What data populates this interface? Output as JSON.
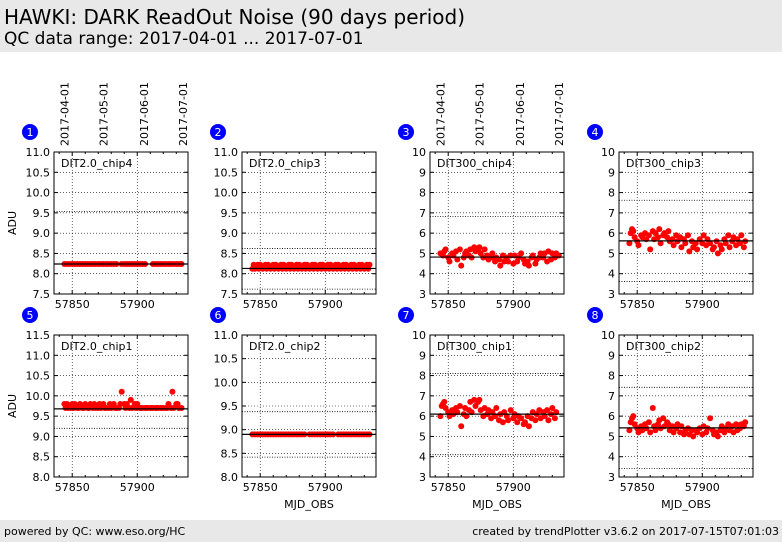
{
  "header": {
    "title": "HAWKI: DARK ReadOut Noise (90 days period)",
    "subtitle": "QC data range: 2017-04-01 ... 2017-07-01"
  },
  "footer": {
    "left": "powered by QC: www.eso.org/HC",
    "right": "created by trendPlotter v3.6.2 on 2017-07-15T07:01:03"
  },
  "colors": {
    "points": "#ff0000",
    "median": "#000000",
    "badge": "#0000ff",
    "header_bg": "#e8e8e8"
  },
  "chart_data": [
    {
      "id": 1,
      "label": "DIT2.0_chip4",
      "type": "scatter",
      "xlim": [
        57836,
        57939
      ],
      "ylim": [
        7.5,
        11.0
      ],
      "yticks": [
        "7.5",
        "8.0",
        "8.5",
        "9.0",
        "9.5",
        "10.0",
        "10.5",
        "11.0"
      ],
      "xticks": [
        "57850",
        "57900"
      ],
      "xtick_values": [
        57850,
        57900
      ],
      "date_ticks": [
        "2017-04-01",
        "2017-05-01",
        "2017-06-01",
        "2017-07-01"
      ],
      "date_tick_values": [
        57844,
        57874,
        57905,
        57935
      ],
      "ylabel": "ADU",
      "xlabel": "",
      "median": 8.24,
      "hlines": [
        9.53
      ],
      "x": [
        57844,
        57846,
        57848,
        57850,
        57852,
        57854,
        57856,
        57858,
        57860,
        57862,
        57864,
        57866,
        57868,
        57870,
        57872,
        57874,
        57876,
        57878,
        57880,
        57882,
        57884,
        57888,
        57890,
        57892,
        57894,
        57896,
        57898,
        57900,
        57902,
        57904,
        57906,
        57912,
        57914,
        57916,
        57918,
        57920,
        57922,
        57924,
        57926,
        57928,
        57930,
        57932,
        57934
      ],
      "y": [
        8.24,
        8.24,
        8.24,
        8.24,
        8.24,
        8.24,
        8.24,
        8.24,
        8.24,
        8.24,
        8.24,
        8.24,
        8.24,
        8.24,
        8.24,
        8.24,
        8.24,
        8.24,
        8.24,
        8.24,
        8.24,
        8.24,
        8.24,
        8.24,
        8.24,
        8.24,
        8.24,
        8.24,
        8.24,
        8.24,
        8.24,
        8.24,
        8.24,
        8.24,
        8.24,
        8.24,
        8.24,
        8.24,
        8.24,
        8.24,
        8.24,
        8.24,
        8.24
      ]
    },
    {
      "id": 2,
      "label": "DIT2.0_chip3",
      "type": "scatter",
      "xlim": [
        57836,
        57939
      ],
      "ylim": [
        7.5,
        11.0
      ],
      "yticks": [
        "7.5",
        "8.0",
        "8.5",
        "9.0",
        "9.5",
        "10.0",
        "10.5",
        "11.0"
      ],
      "xticks": [
        "57850",
        "57900"
      ],
      "xtick_values": [
        57850,
        57900
      ],
      "date_ticks": [],
      "date_tick_values": [],
      "ylabel": "",
      "xlabel": "",
      "median": 8.13,
      "hlines": [
        8.62,
        7.62
      ],
      "x": [
        57844,
        57845,
        57846,
        57848,
        57849,
        57850,
        57852,
        57854,
        57855,
        57856,
        57858,
        57860,
        57861,
        57862,
        57864,
        57866,
        57867,
        57868,
        57870,
        57872,
        57873,
        57874,
        57876,
        57878,
        57879,
        57880,
        57882,
        57884,
        57885,
        57886,
        57888,
        57890,
        57891,
        57892,
        57894,
        57896,
        57897,
        57898,
        57900,
        57902,
        57903,
        57904,
        57906,
        57908,
        57909,
        57910,
        57912,
        57914,
        57915,
        57916,
        57918,
        57920,
        57921,
        57922,
        57924,
        57926,
        57927,
        57928,
        57930,
        57932,
        57933,
        57934
      ],
      "y": [
        8.12,
        8.22,
        8.12,
        8.22,
        8.12,
        8.22,
        8.12,
        8.22,
        8.12,
        8.22,
        8.12,
        8.22,
        8.12,
        8.22,
        8.12,
        8.22,
        8.12,
        8.22,
        8.12,
        8.22,
        8.12,
        8.22,
        8.12,
        8.22,
        8.12,
        8.22,
        8.12,
        8.22,
        8.12,
        8.22,
        8.12,
        8.22,
        8.12,
        8.22,
        8.12,
        8.22,
        8.12,
        8.22,
        8.12,
        8.22,
        8.12,
        8.22,
        8.12,
        8.22,
        8.12,
        8.22,
        8.12,
        8.22,
        8.12,
        8.22,
        8.12,
        8.22,
        8.12,
        8.22,
        8.12,
        8.22,
        8.12,
        8.22,
        8.12,
        8.22,
        8.12,
        8.22
      ]
    },
    {
      "id": 3,
      "label": "DIT300_chip4",
      "type": "scatter",
      "xlim": [
        57836,
        57939
      ],
      "ylim": [
        3,
        10
      ],
      "yticks": [
        "3",
        "4",
        "5",
        "6",
        "7",
        "8",
        "9",
        "10"
      ],
      "xticks": [
        "57850",
        "57900"
      ],
      "xtick_values": [
        57850,
        57900
      ],
      "date_ticks": [
        "2017-04-01",
        "2017-05-01",
        "2017-06-01",
        "2017-07-01"
      ],
      "date_tick_values": [
        57844,
        57874,
        57905,
        57935
      ],
      "ylabel": "",
      "xlabel": "",
      "median": 4.82,
      "hlines": [
        6.82,
        3.0
      ],
      "x": [
        57844,
        57846,
        57847,
        57848,
        57850,
        57851,
        57853,
        57854,
        57856,
        57857,
        57859,
        57860,
        57862,
        57863,
        57864,
        57866,
        57867,
        57868,
        57870,
        57871,
        57873,
        57874,
        57875,
        57877,
        57878,
        57880,
        57881,
        57883,
        57884,
        57886,
        57887,
        57889,
        57890,
        57892,
        57893,
        57895,
        57896,
        57898,
        57900,
        57901,
        57903,
        57904,
        57906,
        57908,
        57909,
        57911,
        57912,
        57914,
        57915,
        57917,
        57918,
        57920,
        57921,
        57923,
        57924,
        57926,
        57927,
        57929,
        57930,
        57932,
        57933,
        57935
      ],
      "y": [
        5.0,
        4.9,
        5.1,
        5.2,
        4.8,
        4.6,
        5.0,
        4.9,
        5.1,
        4.7,
        5.2,
        4.4,
        4.8,
        5.0,
        5.1,
        4.9,
        5.2,
        4.8,
        5.3,
        5.1,
        5.2,
        5.3,
        5.0,
        4.8,
        5.2,
        4.9,
        4.7,
        4.8,
        5.0,
        4.6,
        4.8,
        4.7,
        4.4,
        4.9,
        4.6,
        4.8,
        4.6,
        4.9,
        4.5,
        4.9,
        4.6,
        4.8,
        5.0,
        4.7,
        4.5,
        4.6,
        4.4,
        4.8,
        4.9,
        4.5,
        4.7,
        4.8,
        5.0,
        4.8,
        5.0,
        4.6,
        5.1,
        4.7,
        5.0,
        4.8,
        5.0,
        4.9
      ]
    },
    {
      "id": 4,
      "label": "DIT300_chip3",
      "type": "scatter",
      "xlim": [
        57836,
        57939
      ],
      "ylim": [
        3,
        10
      ],
      "yticks": [
        "3",
        "4",
        "5",
        "6",
        "7",
        "8",
        "9",
        "10"
      ],
      "xticks": [
        "57850",
        "57900"
      ],
      "xtick_values": [
        57850,
        57900
      ],
      "date_ticks": [],
      "date_tick_values": [],
      "ylabel": "",
      "xlabel": "",
      "median": 5.62,
      "hlines": [
        7.62,
        3.62
      ],
      "x": [
        57844,
        57845,
        57846,
        57847,
        57848,
        57850,
        57851,
        57853,
        57854,
        57856,
        57857,
        57859,
        57860,
        57862,
        57863,
        57864,
        57866,
        57867,
        57868,
        57870,
        57871,
        57873,
        57874,
        57875,
        57877,
        57878,
        57880,
        57881,
        57883,
        57884,
        57886,
        57887,
        57889,
        57890,
        57892,
        57893,
        57895,
        57896,
        57898,
        57900,
        57901,
        57903,
        57904,
        57906,
        57908,
        57909,
        57911,
        57912,
        57914,
        57915,
        57917,
        57918,
        57920,
        57921,
        57923,
        57924,
        57926,
        57927,
        57929,
        57930,
        57932,
        57933
      ],
      "y": [
        5.5,
        6.0,
        6.2,
        6.1,
        5.8,
        5.6,
        5.4,
        5.9,
        5.8,
        6.0,
        5.7,
        5.9,
        5.2,
        6.1,
        5.7,
        6.0,
        5.8,
        6.2,
        5.5,
        5.9,
        6.0,
        5.8,
        6.1,
        5.6,
        5.7,
        5.4,
        5.9,
        5.6,
        5.8,
        5.3,
        5.7,
        5.5,
        5.9,
        5.1,
        5.6,
        5.3,
        5.5,
        5.2,
        5.7,
        5.5,
        5.9,
        5.4,
        5.7,
        5.5,
        5.2,
        5.3,
        5.6,
        5.0,
        5.4,
        5.2,
        5.7,
        5.5,
        5.9,
        5.3,
        5.6,
        5.8,
        5.4,
        5.7,
        5.5,
        5.9,
        5.3,
        5.6
      ]
    },
    {
      "id": 5,
      "label": "DIT2.0_chip1",
      "type": "scatter",
      "xlim": [
        57836,
        57939
      ],
      "ylim": [
        8.0,
        11.5
      ],
      "yticks": [
        "8.0",
        "8.5",
        "9.0",
        "9.5",
        "10.0",
        "10.5",
        "11.0",
        "11.5"
      ],
      "xticks": [
        "57850",
        "57900"
      ],
      "xtick_values": [
        57850,
        57900
      ],
      "date_ticks": [],
      "date_tick_values": [],
      "ylabel": "ADU",
      "xlabel": "",
      "median": 9.68,
      "hlines": [
        9.2
      ],
      "x": [
        57844,
        57845,
        57846,
        57847,
        57849,
        57850,
        57851,
        57852,
        57854,
        57855,
        57856,
        57858,
        57859,
        57860,
        57862,
        57863,
        57864,
        57866,
        57867,
        57868,
        57870,
        57871,
        57872,
        57874,
        57875,
        57876,
        57878,
        57879,
        57880,
        57882,
        57883,
        57884,
        57886,
        57887,
        57888,
        57890,
        57891,
        57892,
        57894,
        57895,
        57896,
        57898,
        57899,
        57900,
        57902,
        57903,
        57904,
        57906,
        57907,
        57908,
        57910,
        57911,
        57912,
        57914,
        57915,
        57916,
        57918,
        57919,
        57920,
        57922,
        57923,
        57924,
        57926,
        57927,
        57928,
        57930,
        57931,
        57932,
        57934
      ],
      "y": [
        9.8,
        9.7,
        9.8,
        9.7,
        9.7,
        9.8,
        9.7,
        9.8,
        9.7,
        9.7,
        9.8,
        9.7,
        9.7,
        9.8,
        9.7,
        9.7,
        9.8,
        9.7,
        9.8,
        9.7,
        9.7,
        9.8,
        9.7,
        9.8,
        9.7,
        9.7,
        9.7,
        9.8,
        9.7,
        9.8,
        9.7,
        9.7,
        9.7,
        9.8,
        10.1,
        9.8,
        9.7,
        9.8,
        9.7,
        9.9,
        9.7,
        9.8,
        9.7,
        9.8,
        9.7,
        9.7,
        9.7,
        9.7,
        9.7,
        9.7,
        9.7,
        9.7,
        9.7,
        9.7,
        9.7,
        9.7,
        9.7,
        9.7,
        9.7,
        9.7,
        9.7,
        9.8,
        9.7,
        10.1,
        9.7,
        9.8,
        9.8,
        9.7,
        9.7
      ]
    },
    {
      "id": 6,
      "label": "DIT2.0_chip2",
      "type": "scatter",
      "xlim": [
        57836,
        57939
      ],
      "ylim": [
        8.0,
        11.0
      ],
      "yticks": [
        "8.0",
        "8.5",
        "9.0",
        "9.5",
        "10.0",
        "10.5",
        "11.0"
      ],
      "xticks": [
        "57850",
        "57900"
      ],
      "xtick_values": [
        57850,
        57900
      ],
      "date_ticks": [],
      "date_tick_values": [],
      "ylabel": "",
      "xlabel": "MJD_OBS",
      "median": 8.9,
      "hlines": [
        9.38,
        8.42
      ],
      "x": [
        57844,
        57846,
        57848,
        57850,
        57852,
        57854,
        57856,
        57858,
        57860,
        57862,
        57864,
        57866,
        57868,
        57870,
        57872,
        57874,
        57876,
        57878,
        57880,
        57882,
        57884,
        57888,
        57890,
        57892,
        57894,
        57896,
        57898,
        57900,
        57902,
        57904,
        57906,
        57910,
        57912,
        57914,
        57916,
        57918,
        57920,
        57922,
        57924,
        57926,
        57928,
        57930,
        57932,
        57934
      ],
      "y": [
        8.9,
        8.9,
        8.9,
        8.9,
        8.9,
        8.9,
        8.9,
        8.9,
        8.9,
        8.9,
        8.9,
        8.9,
        8.9,
        8.9,
        8.9,
        8.9,
        8.9,
        8.9,
        8.9,
        8.9,
        8.9,
        8.9,
        8.9,
        8.9,
        8.9,
        8.9,
        8.9,
        8.9,
        8.9,
        8.9,
        8.9,
        8.9,
        8.9,
        8.9,
        8.9,
        8.9,
        8.9,
        8.9,
        8.9,
        8.9,
        8.9,
        8.9,
        8.9,
        8.9
      ]
    },
    {
      "id": 7,
      "label": "DIT300_chip1",
      "type": "scatter",
      "xlim": [
        57836,
        57939
      ],
      "ylim": [
        3,
        10
      ],
      "yticks": [
        "3",
        "4",
        "5",
        "6",
        "7",
        "8",
        "9",
        "10"
      ],
      "xticks": [
        "57850",
        "57900"
      ],
      "xtick_values": [
        57850,
        57900
      ],
      "date_ticks": [],
      "date_tick_values": [],
      "ylabel": "",
      "xlabel": "MJD_OBS",
      "median": 6.1,
      "hlines": [
        8.1,
        4.1
      ],
      "x": [
        57844,
        57845,
        57846,
        57847,
        57848,
        57850,
        57851,
        57853,
        57854,
        57856,
        57857,
        57859,
        57860,
        57862,
        57863,
        57864,
        57866,
        57867,
        57868,
        57870,
        57871,
        57873,
        57874,
        57875,
        57877,
        57878,
        57880,
        57881,
        57883,
        57884,
        57886,
        57887,
        57889,
        57890,
        57892,
        57893,
        57895,
        57896,
        57898,
        57900,
        57901,
        57903,
        57904,
        57906,
        57908,
        57909,
        57911,
        57912,
        57914,
        57915,
        57917,
        57918,
        57920,
        57921,
        57923,
        57924,
        57926,
        57927,
        57929,
        57930,
        57932,
        57933
      ],
      "y": [
        6.0,
        6.5,
        6.6,
        6.7,
        6.4,
        6.2,
        6.0,
        6.3,
        6.1,
        6.4,
        6.2,
        6.5,
        5.5,
        6.1,
        6.4,
        6.0,
        6.3,
        6.7,
        6.2,
        6.8,
        6.5,
        6.7,
        6.8,
        6.3,
        6.0,
        6.4,
        6.1,
        6.3,
        5.9,
        6.2,
        6.0,
        6.4,
        5.8,
        6.1,
        5.7,
        6.2,
        6.0,
        5.8,
        6.3,
        5.9,
        6.1,
        5.7,
        6.0,
        5.9,
        5.6,
        5.7,
        6.0,
        5.5,
        5.9,
        6.2,
        5.8,
        6.1,
        6.3,
        5.9,
        6.2,
        6.0,
        6.3,
        5.8,
        6.1,
        6.4,
        5.9,
        6.2
      ]
    },
    {
      "id": 8,
      "label": "DIT300_chip2",
      "type": "scatter",
      "xlim": [
        57836,
        57939
      ],
      "ylim": [
        3,
        10
      ],
      "yticks": [
        "3",
        "4",
        "5",
        "6",
        "7",
        "8",
        "9",
        "10"
      ],
      "xticks": [
        "57850",
        "57900"
      ],
      "xtick_values": [
        57850,
        57900
      ],
      "date_ticks": [],
      "date_tick_values": [],
      "ylabel": "",
      "xlabel": "MJD_OBS",
      "median": 5.42,
      "hlines": [
        7.42,
        3.42
      ],
      "x": [
        57844,
        57845,
        57846,
        57847,
        57848,
        57850,
        57851,
        57853,
        57854,
        57856,
        57857,
        57859,
        57860,
        57862,
        57863,
        57864,
        57866,
        57867,
        57868,
        57870,
        57871,
        57873,
        57874,
        57875,
        57877,
        57878,
        57880,
        57881,
        57883,
        57884,
        57886,
        57887,
        57889,
        57890,
        57892,
        57893,
        57895,
        57896,
        57898,
        57900,
        57901,
        57903,
        57904,
        57906,
        57908,
        57909,
        57911,
        57912,
        57914,
        57915,
        57917,
        57918,
        57920,
        57921,
        57923,
        57924,
        57926,
        57927,
        57929,
        57930,
        57932,
        57933
      ],
      "y": [
        5.3,
        5.7,
        5.9,
        6.0,
        5.6,
        5.4,
        5.2,
        5.5,
        5.3,
        5.6,
        5.4,
        5.7,
        5.2,
        6.4,
        5.5,
        5.3,
        5.6,
        5.8,
        5.4,
        5.9,
        5.5,
        5.7,
        5.6,
        5.3,
        5.5,
        5.2,
        5.4,
        5.6,
        5.2,
        5.5,
        5.1,
        5.3,
        5.4,
        5.1,
        5.3,
        5.0,
        5.3,
        5.2,
        5.4,
        5.1,
        5.5,
        5.2,
        5.4,
        5.9,
        5.3,
        5.1,
        5.2,
        5.0,
        5.3,
        5.5,
        5.2,
        5.4,
        5.6,
        5.3,
        5.5,
        5.2,
        5.6,
        5.3,
        5.4,
        5.6,
        5.5,
        5.7
      ]
    }
  ]
}
